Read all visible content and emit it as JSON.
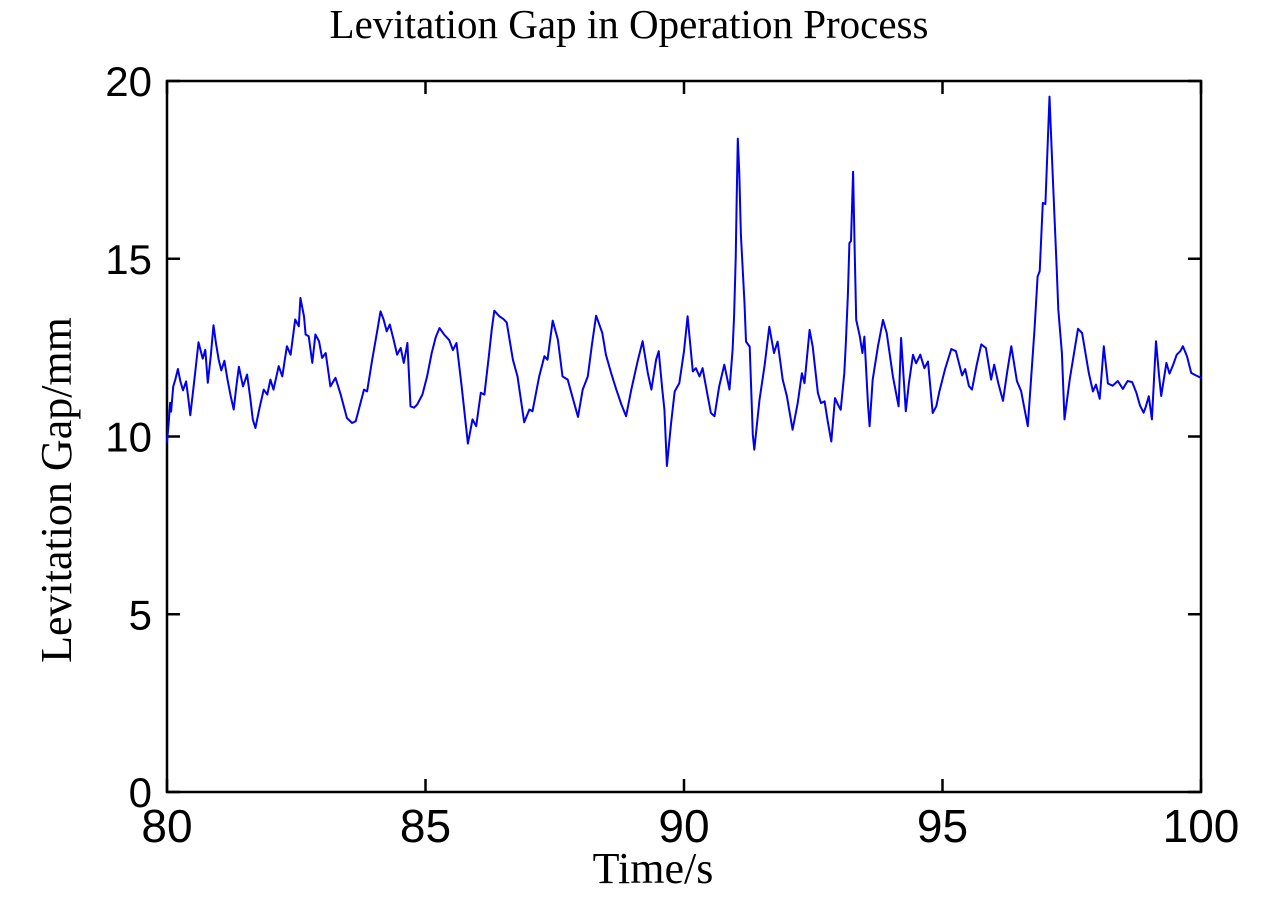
{
  "chart_data": {
    "type": "line",
    "title": "Levitation Gap in Operation Process",
    "xlabel": "Time/s",
    "ylabel": "Levitation Gap/mm",
    "xlim": [
      80,
      100
    ],
    "ylim": [
      0,
      20
    ],
    "x_ticks": [
      "80",
      "85",
      "90",
      "95",
      "100"
    ],
    "y_ticks": [
      "0",
      "5",
      "10",
      "15",
      "20"
    ],
    "grid": false,
    "box": true,
    "tick_direction": "in",
    "legend": null,
    "line_color": "#0000EE",
    "axis_color": "#000000",
    "background_color": "#FFFFFF",
    "series": [
      {
        "name": "Levitation Gap",
        "points": [
          [
            80.0,
            9.85
          ],
          [
            80.03,
            10.35
          ],
          [
            80.06,
            10.95
          ],
          [
            80.08,
            10.7
          ],
          [
            80.12,
            11.4
          ],
          [
            80.16,
            11.6
          ],
          [
            80.21,
            11.9
          ],
          [
            80.26,
            11.55
          ],
          [
            80.31,
            11.3
          ],
          [
            80.37,
            11.55
          ],
          [
            80.41,
            11.1
          ],
          [
            80.45,
            10.6
          ],
          [
            80.53,
            11.6
          ],
          [
            80.61,
            12.65
          ],
          [
            80.69,
            12.19
          ],
          [
            80.74,
            12.44
          ],
          [
            80.79,
            11.51
          ],
          [
            80.85,
            12.3
          ],
          [
            80.9,
            13.13
          ],
          [
            80.95,
            12.6
          ],
          [
            81.0,
            12.16
          ],
          [
            81.05,
            11.86
          ],
          [
            81.11,
            12.13
          ],
          [
            81.17,
            11.6
          ],
          [
            81.23,
            11.15
          ],
          [
            81.29,
            10.76
          ],
          [
            81.34,
            11.4
          ],
          [
            81.39,
            11.96
          ],
          [
            81.47,
            11.41
          ],
          [
            81.55,
            11.74
          ],
          [
            81.61,
            11.1
          ],
          [
            81.66,
            10.48
          ],
          [
            81.71,
            10.24
          ],
          [
            81.79,
            10.8
          ],
          [
            81.87,
            11.32
          ],
          [
            81.94,
            11.18
          ],
          [
            82.0,
            11.6
          ],
          [
            82.06,
            11.32
          ],
          [
            82.16,
            11.98
          ],
          [
            82.23,
            11.69
          ],
          [
            82.32,
            12.54
          ],
          [
            82.39,
            12.3
          ],
          [
            82.48,
            13.29
          ],
          [
            82.55,
            13.1
          ],
          [
            82.58,
            13.9
          ],
          [
            82.65,
            13.38
          ],
          [
            82.68,
            12.87
          ],
          [
            82.74,
            12.82
          ],
          [
            82.81,
            12.07
          ],
          [
            82.87,
            12.87
          ],
          [
            82.94,
            12.68
          ],
          [
            83.0,
            12.21
          ],
          [
            83.07,
            12.35
          ],
          [
            83.16,
            11.41
          ],
          [
            83.26,
            11.65
          ],
          [
            83.36,
            11.18
          ],
          [
            83.48,
            10.52
          ],
          [
            83.58,
            10.38
          ],
          [
            83.65,
            10.43
          ],
          [
            83.71,
            10.76
          ],
          [
            83.81,
            11.32
          ],
          [
            83.87,
            11.27
          ],
          [
            83.97,
            12.16
          ],
          [
            84.07,
            13.0
          ],
          [
            84.13,
            13.52
          ],
          [
            84.19,
            13.29
          ],
          [
            84.25,
            12.96
          ],
          [
            84.31,
            13.15
          ],
          [
            84.39,
            12.68
          ],
          [
            84.45,
            12.3
          ],
          [
            84.52,
            12.49
          ],
          [
            84.58,
            12.07
          ],
          [
            84.65,
            12.63
          ],
          [
            84.71,
            10.85
          ],
          [
            84.78,
            10.81
          ],
          [
            84.84,
            10.9
          ],
          [
            84.94,
            11.18
          ],
          [
            85.03,
            11.69
          ],
          [
            85.12,
            12.35
          ],
          [
            85.2,
            12.8
          ],
          [
            85.27,
            13.05
          ],
          [
            85.36,
            12.87
          ],
          [
            85.46,
            12.71
          ],
          [
            85.53,
            12.43
          ],
          [
            85.6,
            12.63
          ],
          [
            85.7,
            11.4
          ],
          [
            85.82,
            9.8
          ],
          [
            85.91,
            10.48
          ],
          [
            85.98,
            10.29
          ],
          [
            86.07,
            11.23
          ],
          [
            86.14,
            11.18
          ],
          [
            86.22,
            12.2
          ],
          [
            86.28,
            13.0
          ],
          [
            86.33,
            13.54
          ],
          [
            86.43,
            13.38
          ],
          [
            86.51,
            13.3
          ],
          [
            86.57,
            13.21
          ],
          [
            86.69,
            12.16
          ],
          [
            86.78,
            11.69
          ],
          [
            86.91,
            10.4
          ],
          [
            87.01,
            10.76
          ],
          [
            87.07,
            10.71
          ],
          [
            87.2,
            11.69
          ],
          [
            87.3,
            12.26
          ],
          [
            87.36,
            12.16
          ],
          [
            87.46,
            13.26
          ],
          [
            87.56,
            12.72
          ],
          [
            87.65,
            11.69
          ],
          [
            87.75,
            11.6
          ],
          [
            87.82,
            11.23
          ],
          [
            87.95,
            10.55
          ],
          [
            88.04,
            11.32
          ],
          [
            88.14,
            11.69
          ],
          [
            88.22,
            12.6
          ],
          [
            88.3,
            13.4
          ],
          [
            88.42,
            12.91
          ],
          [
            88.49,
            12.3
          ],
          [
            88.59,
            11.79
          ],
          [
            88.69,
            11.32
          ],
          [
            88.79,
            10.9
          ],
          [
            88.88,
            10.57
          ],
          [
            88.98,
            11.32
          ],
          [
            89.1,
            12.1
          ],
          [
            89.2,
            12.68
          ],
          [
            89.3,
            11.79
          ],
          [
            89.37,
            11.32
          ],
          [
            89.46,
            12.16
          ],
          [
            89.51,
            12.4
          ],
          [
            89.58,
            11.32
          ],
          [
            89.62,
            10.76
          ],
          [
            89.67,
            9.17
          ],
          [
            89.75,
            10.38
          ],
          [
            89.82,
            11.27
          ],
          [
            89.91,
            11.5
          ],
          [
            90.0,
            12.4
          ],
          [
            90.07,
            13.38
          ],
          [
            90.17,
            11.83
          ],
          [
            90.23,
            11.92
          ],
          [
            90.3,
            11.69
          ],
          [
            90.36,
            11.92
          ],
          [
            90.45,
            11.2
          ],
          [
            90.52,
            10.66
          ],
          [
            90.59,
            10.57
          ],
          [
            90.68,
            11.41
          ],
          [
            90.78,
            12.02
          ],
          [
            90.88,
            11.32
          ],
          [
            90.94,
            12.44
          ],
          [
            90.97,
            13.4
          ],
          [
            91.0,
            15.0
          ],
          [
            91.02,
            16.7
          ],
          [
            91.04,
            18.38
          ],
          [
            91.07,
            17.4
          ],
          [
            91.1,
            15.67
          ],
          [
            91.17,
            13.75
          ],
          [
            91.2,
            12.67
          ],
          [
            91.27,
            12.53
          ],
          [
            91.33,
            10.05
          ],
          [
            91.36,
            9.63
          ],
          [
            91.46,
            11.03
          ],
          [
            91.56,
            12.02
          ],
          [
            91.65,
            13.09
          ],
          [
            91.74,
            12.35
          ],
          [
            91.81,
            12.67
          ],
          [
            91.91,
            11.6
          ],
          [
            91.99,
            11.13
          ],
          [
            92.1,
            10.19
          ],
          [
            92.2,
            10.94
          ],
          [
            92.28,
            11.78
          ],
          [
            92.33,
            11.5
          ],
          [
            92.43,
            13.0
          ],
          [
            92.49,
            12.53
          ],
          [
            92.59,
            11.22
          ],
          [
            92.65,
            10.94
          ],
          [
            92.72,
            10.99
          ],
          [
            92.78,
            10.43
          ],
          [
            92.85,
            9.86
          ],
          [
            92.92,
            11.08
          ],
          [
            92.98,
            10.89
          ],
          [
            93.03,
            10.75
          ],
          [
            93.1,
            11.78
          ],
          [
            93.13,
            12.6
          ],
          [
            93.17,
            14.0
          ],
          [
            93.2,
            15.44
          ],
          [
            93.23,
            15.5
          ],
          [
            93.27,
            17.45
          ],
          [
            93.3,
            15.34
          ],
          [
            93.33,
            13.28
          ],
          [
            93.4,
            12.82
          ],
          [
            93.45,
            12.35
          ],
          [
            93.49,
            12.81
          ],
          [
            93.56,
            10.85
          ],
          [
            93.59,
            10.29
          ],
          [
            93.65,
            11.6
          ],
          [
            93.75,
            12.53
          ],
          [
            93.85,
            13.28
          ],
          [
            93.92,
            12.91
          ],
          [
            94.04,
            11.69
          ],
          [
            94.12,
            11.08
          ],
          [
            94.15,
            10.85
          ],
          [
            94.2,
            12.77
          ],
          [
            94.29,
            10.71
          ],
          [
            94.35,
            11.5
          ],
          [
            94.43,
            12.3
          ],
          [
            94.49,
            12.06
          ],
          [
            94.57,
            12.3
          ],
          [
            94.65,
            11.92
          ],
          [
            94.72,
            12.11
          ],
          [
            94.81,
            10.66
          ],
          [
            94.88,
            10.85
          ],
          [
            94.94,
            11.27
          ],
          [
            95.05,
            11.9
          ],
          [
            95.17,
            12.46
          ],
          [
            95.26,
            12.4
          ],
          [
            95.38,
            11.72
          ],
          [
            95.44,
            11.9
          ],
          [
            95.51,
            11.42
          ],
          [
            95.57,
            11.32
          ],
          [
            95.66,
            12.0
          ],
          [
            95.75,
            12.59
          ],
          [
            95.84,
            12.49
          ],
          [
            95.94,
            11.6
          ],
          [
            96.0,
            12.02
          ],
          [
            96.08,
            11.5
          ],
          [
            96.17,
            11.0
          ],
          [
            96.25,
            11.8
          ],
          [
            96.33,
            12.54
          ],
          [
            96.44,
            11.56
          ],
          [
            96.52,
            11.28
          ],
          [
            96.65,
            10.29
          ],
          [
            96.78,
            13.01
          ],
          [
            96.84,
            14.5
          ],
          [
            96.88,
            14.65
          ],
          [
            96.94,
            16.57
          ],
          [
            96.99,
            16.54
          ],
          [
            97.07,
            19.56
          ],
          [
            97.12,
            17.76
          ],
          [
            97.18,
            15.72
          ],
          [
            97.21,
            14.65
          ],
          [
            97.24,
            13.57
          ],
          [
            97.31,
            12.35
          ],
          [
            97.36,
            10.48
          ],
          [
            97.46,
            11.6
          ],
          [
            97.62,
            13.03
          ],
          [
            97.7,
            12.91
          ],
          [
            97.83,
            11.79
          ],
          [
            97.91,
            11.27
          ],
          [
            97.97,
            11.46
          ],
          [
            98.04,
            11.06
          ],
          [
            98.12,
            12.54
          ],
          [
            98.2,
            11.49
          ],
          [
            98.29,
            11.43
          ],
          [
            98.39,
            11.56
          ],
          [
            98.49,
            11.34
          ],
          [
            98.58,
            11.56
          ],
          [
            98.67,
            11.53
          ],
          [
            98.75,
            11.23
          ],
          [
            98.82,
            10.87
          ],
          [
            98.89,
            10.67
          ],
          [
            98.93,
            10.83
          ],
          [
            98.99,
            11.13
          ],
          [
            99.05,
            10.48
          ],
          [
            99.13,
            12.68
          ],
          [
            99.19,
            11.7
          ],
          [
            99.23,
            11.14
          ],
          [
            99.33,
            12.07
          ],
          [
            99.39,
            11.77
          ],
          [
            99.47,
            12.05
          ],
          [
            99.53,
            12.3
          ],
          [
            99.6,
            12.4
          ],
          [
            99.65,
            12.54
          ],
          [
            99.73,
            12.26
          ],
          [
            99.81,
            11.79
          ],
          [
            99.9,
            11.72
          ],
          [
            100.0,
            11.65
          ]
        ]
      }
    ]
  }
}
